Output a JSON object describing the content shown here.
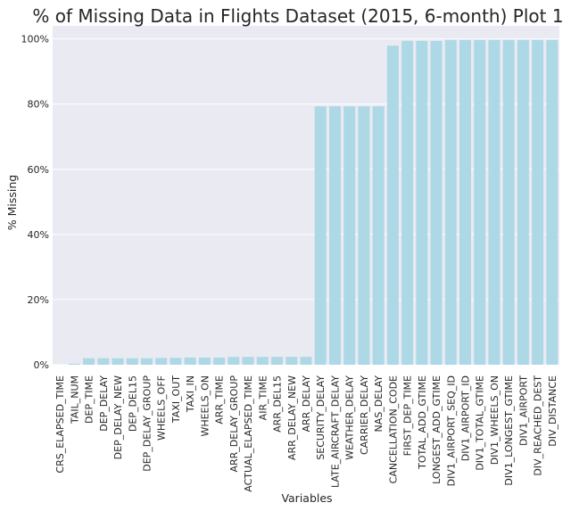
{
  "chart_data": {
    "type": "bar",
    "title": "% of Missing Data in Flights Dataset (2015, 6-month) Plot 1",
    "xlabel": "Variables",
    "ylabel": "% Missing",
    "ylim": [
      0,
      104
    ],
    "yticks": [
      0,
      20,
      40,
      60,
      80,
      100
    ],
    "ytick_labels": [
      "0%",
      "20%",
      "40%",
      "60%",
      "80%",
      "100%"
    ],
    "grid": true,
    "background": "#eaeaf2",
    "bar_color": "#add8e6",
    "categories": [
      "CRS_ELAPSED_TIME",
      "TAIL_NUM",
      "DEP_TIME",
      "DEP_DELAY",
      "DEP_DELAY_NEW",
      "DEP_DEL15",
      "DEP_DELAY_GROUP",
      "WHEELS_OFF",
      "TAXI_OUT",
      "TAXI_IN",
      "WHEELS_ON",
      "ARR_TIME",
      "ARR_DELAY_GROUP",
      "ACTUAL_ELAPSED_TIME",
      "AIR_TIME",
      "ARR_DEL15",
      "ARR_DELAY_NEW",
      "ARR_DELAY",
      "SECURITY_DELAY",
      "LATE_AIRCRAFT_DELAY",
      "WEATHER_DELAY",
      "CARRIER_DELAY",
      "NAS_DELAY",
      "CANCELLATION_CODE",
      "FIRST_DEP_TIME",
      "TOTAL_ADD_GTIME",
      "LONGEST_ADD_GTIME",
      "DIV1_AIRPORT_SEQ_ID",
      "DIV1_AIRPORT_ID",
      "DIV1_TOTAL_GTIME",
      "DIV1_WHEELS_ON",
      "DIV1_LONGEST_GTIME",
      "DIV1_AIRPORT",
      "DIV_REACHED_DEST",
      "DIV_DISTANCE"
    ],
    "values": [
      0.0,
      0.3,
      2.0,
      2.0,
      2.0,
      2.0,
      2.0,
      2.1,
      2.1,
      2.2,
      2.2,
      2.2,
      2.4,
      2.4,
      2.4,
      2.4,
      2.4,
      2.4,
      79.3,
      79.3,
      79.3,
      79.3,
      79.3,
      97.9,
      99.4,
      99.4,
      99.4,
      99.7,
      99.7,
      99.7,
      99.7,
      99.7,
      99.7,
      99.7,
      99.7
    ]
  }
}
